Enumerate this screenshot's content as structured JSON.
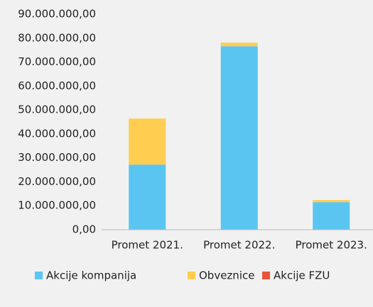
{
  "chart_data": {
    "type": "stacked_bar",
    "categories": [
      "Promet 2021.",
      "Promet 2022.",
      "Promet 2023."
    ],
    "series": [
      {
        "name": "Akcije kompanija",
        "color": "#5bc5f2",
        "values": [
          27200000,
          76600000,
          11500000
        ]
      },
      {
        "name": "Obveznice",
        "color": "#ffcd50",
        "values": [
          19200000,
          1500000,
          900000
        ]
      },
      {
        "name": "Akcije FZU",
        "color": "#e8553a",
        "values": [
          0,
          0,
          0
        ]
      }
    ],
    "ylim": [
      0,
      90000000
    ],
    "yticks": [
      {
        "value": 0,
        "label": "0,00"
      },
      {
        "value": 10000000,
        "label": "10.000.000,00"
      },
      {
        "value": 20000000,
        "label": "20.000.000,00"
      },
      {
        "value": 30000000,
        "label": "30.000.000,00"
      },
      {
        "value": 40000000,
        "label": "40.000.000,00"
      },
      {
        "value": 50000000,
        "label": "50.000.000,00"
      },
      {
        "value": 60000000,
        "label": "60.000.000,00"
      },
      {
        "value": 70000000,
        "label": "70.000.000,00"
      },
      {
        "value": 80000000,
        "label": "80.000.000,00"
      },
      {
        "value": 90000000,
        "label": "90.000.000,00"
      }
    ],
    "grid": false
  }
}
